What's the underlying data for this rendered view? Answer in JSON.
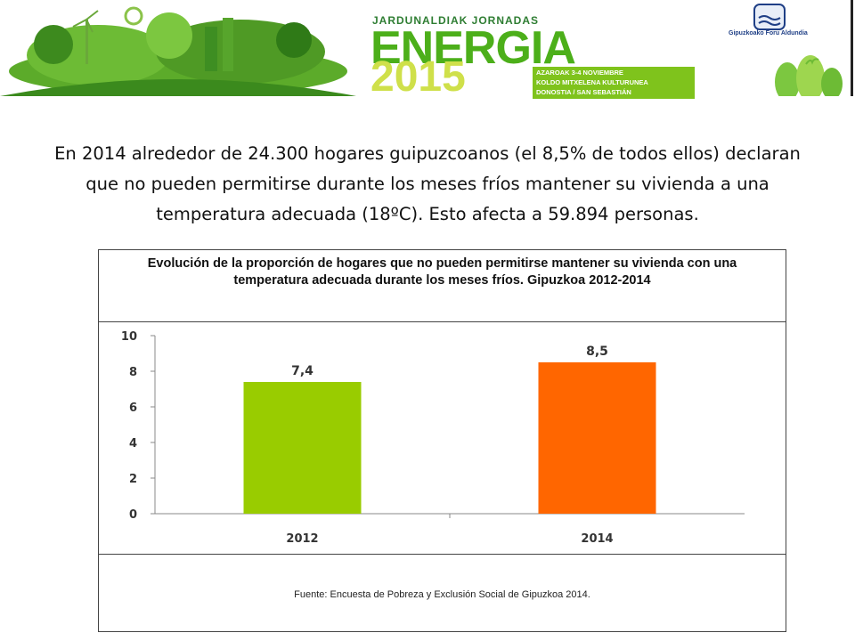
{
  "banner": {
    "jornadas_label": "JARDUNALDIAK JORNADAS",
    "energia": "ENERGIA",
    "year": "2015",
    "event_lines": [
      "AZAROAK 3-4 NOVIEMBRE",
      "KOLDO MITXELENA KULTURUNEA",
      "DONOSTIA / SAN SEBASTIÁN"
    ],
    "org_name": "Gipuzkoako Foru Aldundia",
    "colors": {
      "green": "#4caf1a",
      "dark_green": "#2e7d32",
      "lime": "#cfe04a",
      "navy": "#1f3f86"
    }
  },
  "intro_text": "En 2014 alrededor de 24.300 hogares guipuzcoanos (el 8,5% de todos ellos) declaran que no pueden permitirse durante los meses fríos mantener su vivienda a una temperatura adecuada (18ºC). Esto afecta a 59.894 personas.",
  "chart_data": {
    "type": "bar",
    "title": "Evolución de la proporción de hogares que no pueden permitirse mantener su vivienda con una temperatura adecuada durante los meses fríos. Gipuzkoa 2012-2014",
    "categories": [
      "2012",
      "2014"
    ],
    "values": [
      7.4,
      8.5
    ],
    "value_labels": [
      "7,4",
      "8,5"
    ],
    "colors": [
      "#99cc00",
      "#ff6600"
    ],
    "ylim": [
      0,
      10
    ],
    "yticks": [
      "0",
      "2",
      "4",
      "6",
      "8",
      "10"
    ],
    "grid": false,
    "xlabel": "",
    "ylabel": ""
  },
  "source": "Fuente: Encuesta de Pobreza y Exclusión Social de Gipuzkoa 2014."
}
